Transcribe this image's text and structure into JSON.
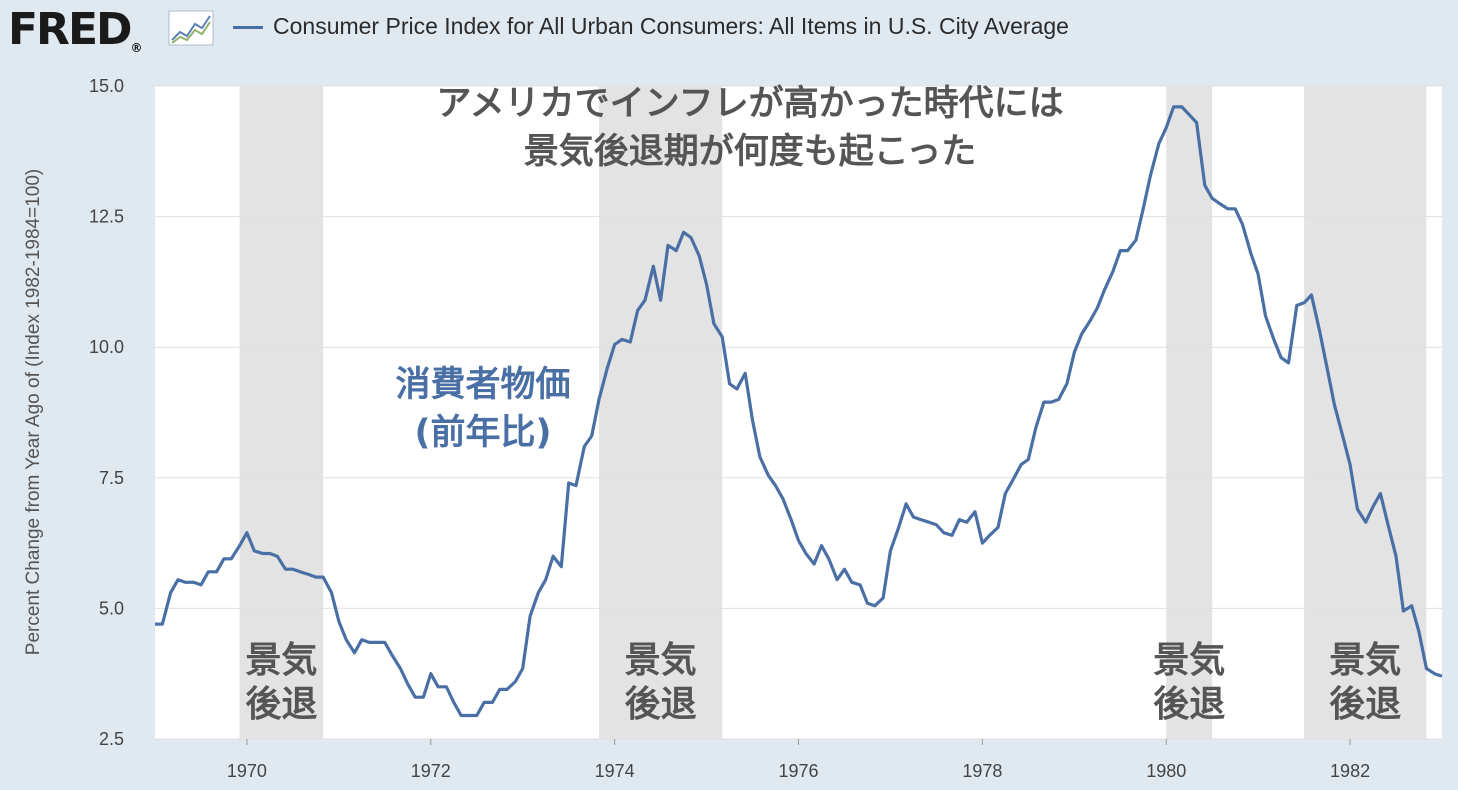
{
  "header": {
    "logo_text": "FRED",
    "logo_mark": "®",
    "legend_label": "Consumer Price Index for All Urban Consumers: All Items in U.S. City Average",
    "series_color": "#4a6fa5",
    "chart_icon": "line-chart-icon"
  },
  "chart_data": {
    "type": "line",
    "ylabel": "Percent Change from Year Ago of (Index 1982-1984=100)",
    "xlim": [
      1969.0,
      1983.0
    ],
    "ylim": [
      2.5,
      15.0
    ],
    "x_ticks": [
      1970,
      1972,
      1974,
      1976,
      1978,
      1980,
      1982
    ],
    "x_tick_labels": [
      "1970",
      "1972",
      "1974",
      "1976",
      "1978",
      "1980",
      "1982"
    ],
    "y_ticks": [
      2.5,
      5.0,
      7.5,
      10.0,
      12.5,
      15.0
    ],
    "y_tick_labels": [
      "2.5",
      "5.0",
      "7.5",
      "10.0",
      "12.5",
      "15.0"
    ],
    "grid": true,
    "annotations": {
      "title_line1": "アメリカでインフレが高かった時代には",
      "title_line2": "景気後退期が何度も起こった",
      "series_label_line1": "消費者物価",
      "series_label_line2": "(前年比)",
      "recession_line1": "景気",
      "recession_line2": "後退"
    },
    "recessions": [
      {
        "start": 1969.92,
        "end": 1970.83
      },
      {
        "start": 1973.83,
        "end": 1975.17
      },
      {
        "start": 1980.0,
        "end": 1980.5
      },
      {
        "start": 1981.5,
        "end": 1982.83
      }
    ],
    "series": [
      {
        "name": "Consumer Price Index for All Urban Consumers: All Items in U.S. City Average",
        "x": [
          1969.0,
          1969.08,
          1969.17,
          1969.25,
          1969.33,
          1969.42,
          1969.5,
          1969.58,
          1969.67,
          1969.75,
          1969.83,
          1969.92,
          1970.0,
          1970.08,
          1970.17,
          1970.25,
          1970.33,
          1970.42,
          1970.5,
          1970.58,
          1970.67,
          1970.75,
          1970.83,
          1970.92,
          1971.0,
          1971.08,
          1971.17,
          1971.25,
          1971.33,
          1971.42,
          1971.5,
          1971.58,
          1971.67,
          1971.75,
          1971.83,
          1971.92,
          1972.0,
          1972.08,
          1972.17,
          1972.25,
          1972.33,
          1972.42,
          1972.5,
          1972.58,
          1972.67,
          1972.75,
          1972.83,
          1972.92,
          1973.0,
          1973.08,
          1973.17,
          1973.25,
          1973.33,
          1973.42,
          1973.5,
          1973.58,
          1973.67,
          1973.75,
          1973.83,
          1973.92,
          1974.0,
          1974.08,
          1974.17,
          1974.25,
          1974.33,
          1974.42,
          1974.5,
          1974.58,
          1974.67,
          1974.75,
          1974.83,
          1974.92,
          1975.0,
          1975.08,
          1975.17,
          1975.25,
          1975.33,
          1975.42,
          1975.5,
          1975.58,
          1975.67,
          1975.75,
          1975.83,
          1975.92,
          1976.0,
          1976.08,
          1976.17,
          1976.25,
          1976.33,
          1976.42,
          1976.5,
          1976.58,
          1976.67,
          1976.75,
          1976.83,
          1976.92,
          1977.0,
          1977.08,
          1977.17,
          1977.25,
          1977.33,
          1977.42,
          1977.5,
          1977.58,
          1977.67,
          1977.75,
          1977.83,
          1977.92,
          1978.0,
          1978.08,
          1978.17,
          1978.25,
          1978.33,
          1978.42,
          1978.5,
          1978.58,
          1978.67,
          1978.75,
          1978.83,
          1978.92,
          1979.0,
          1979.08,
          1979.17,
          1979.25,
          1979.33,
          1979.42,
          1979.5,
          1979.58,
          1979.67,
          1979.75,
          1979.83,
          1979.92,
          1980.0,
          1980.08,
          1980.17,
          1980.25,
          1980.33,
          1980.42,
          1980.5,
          1980.58,
          1980.67,
          1980.75,
          1980.83,
          1980.92,
          1981.0,
          1981.08,
          1981.17,
          1981.25,
          1981.33,
          1981.42,
          1981.5,
          1981.58,
          1981.67,
          1981.75,
          1981.83,
          1981.92,
          1982.0,
          1982.08,
          1982.17,
          1982.25,
          1982.33,
          1982.42,
          1982.5,
          1982.58,
          1982.67,
          1982.75,
          1982.83,
          1982.92,
          1983.0
        ],
        "values": [
          4.7,
          4.7,
          5.3,
          5.55,
          5.5,
          5.5,
          5.45,
          5.7,
          5.7,
          5.95,
          5.95,
          6.2,
          6.45,
          6.1,
          6.05,
          6.05,
          6.0,
          5.75,
          5.75,
          5.7,
          5.65,
          5.6,
          5.6,
          5.3,
          4.75,
          4.4,
          4.15,
          4.4,
          4.35,
          4.35,
          4.35,
          4.1,
          3.85,
          3.55,
          3.3,
          3.3,
          3.75,
          3.5,
          3.5,
          3.2,
          2.95,
          2.95,
          2.95,
          3.2,
          3.2,
          3.45,
          3.45,
          3.6,
          3.85,
          4.85,
          5.3,
          5.55,
          6.0,
          5.8,
          7.4,
          7.35,
          8.1,
          8.3,
          9.0,
          9.6,
          10.05,
          10.15,
          10.1,
          10.7,
          10.9,
          11.55,
          10.9,
          11.95,
          11.85,
          12.2,
          12.1,
          11.75,
          11.2,
          10.45,
          10.2,
          9.3,
          9.2,
          9.5,
          8.6,
          7.9,
          7.55,
          7.35,
          7.1,
          6.7,
          6.3,
          6.05,
          5.85,
          6.2,
          5.95,
          5.55,
          5.75,
          5.5,
          5.45,
          5.1,
          5.05,
          5.2,
          6.1,
          6.5,
          7.0,
          6.75,
          6.7,
          6.65,
          6.6,
          6.45,
          6.4,
          6.7,
          6.65,
          6.85,
          6.25,
          6.4,
          6.55,
          7.2,
          7.45,
          7.75,
          7.85,
          8.45,
          8.95,
          8.95,
          9.0,
          9.3,
          9.9,
          10.25,
          10.5,
          10.75,
          11.1,
          11.45,
          11.85,
          11.85,
          12.05,
          12.65,
          13.3,
          13.9,
          14.2,
          14.6,
          14.6,
          14.45,
          14.3,
          13.1,
          12.85,
          12.75,
          12.65,
          12.65,
          12.35,
          11.8,
          11.4,
          10.6,
          10.15,
          9.8,
          9.7,
          10.8,
          10.85,
          11.0,
          10.3,
          9.6,
          8.9,
          8.3,
          7.75,
          6.9,
          6.65,
          6.95,
          7.2,
          6.55,
          6.0,
          4.95,
          5.05,
          4.55,
          3.85,
          3.75,
          3.7
        ]
      }
    ]
  }
}
